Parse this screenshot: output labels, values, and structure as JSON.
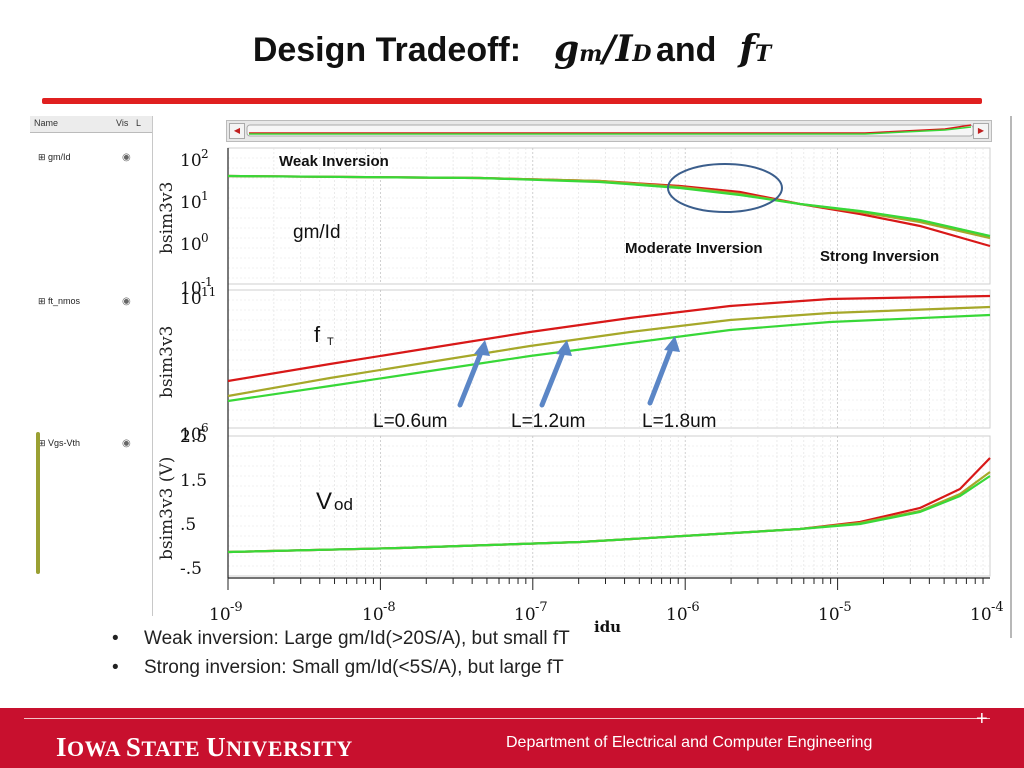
{
  "title": {
    "text": "Design Tradeoff:",
    "gm": "g",
    "gm_sub": "m",
    "slash": "/",
    "id": "I",
    "id_sub": "D",
    "and": "and",
    "ft": "f",
    "ft_sub": "T"
  },
  "tree": {
    "headers": [
      "Name",
      "Vis",
      "L"
    ],
    "items": [
      "gm/Id",
      "ft_nmos",
      "Vgs-Vth"
    ]
  },
  "plots": {
    "ylabel_1": "bsim3v3",
    "ylabel_2": "bsim3v3",
    "ylabel_3": "bsim3v3 (V)",
    "xlabel": "idu",
    "ticks_1": [
      "10",
      "10",
      "10",
      "10"
    ],
    "ticks_1_exp": [
      "2",
      "1",
      "0",
      "-1"
    ],
    "ticks_2_top": "10",
    "ticks_2_top_exp": "11",
    "ticks_2_bottom": "10",
    "ticks_2_bottom_exp": "6",
    "ticks_3": [
      "2.5",
      "1.5",
      ".5",
      "-.5"
    ],
    "xticks": [
      "10",
      "10",
      "10",
      "10",
      "10",
      "10"
    ],
    "xticks_exp": [
      "-9",
      "-8",
      "-7",
      "-6",
      "-5",
      "-4"
    ]
  },
  "annotations": {
    "weak": "Weak Inversion",
    "moderate": "Moderate Inversion",
    "strong": "Strong Inversion",
    "gmid": "gm/Id",
    "ft": "f",
    "ft_sub": "T",
    "vod": "V",
    "vod_sub": "od",
    "l1": "L=0.6um",
    "l2": "L=1.2um",
    "l3": "L=1.8um"
  },
  "colors": {
    "red": "#d81818",
    "olive": "#a6a82a",
    "green": "#38d838",
    "accent": "#c8102e"
  },
  "bullets": [
    "Weak inversion: Large gm/Id(>20S/A), but small fT",
    "Strong inversion: Small gm/Id(<5S/A), but large fT"
  ],
  "footer": {
    "uni_i": "I",
    "uni_owa": "OWA",
    "uni_s": "S",
    "uni_tate": "TATE",
    "uni_u": "U",
    "uni_niversity": "NIVERSITY",
    "dept": "Department of Electrical and Computer Engineering"
  }
}
